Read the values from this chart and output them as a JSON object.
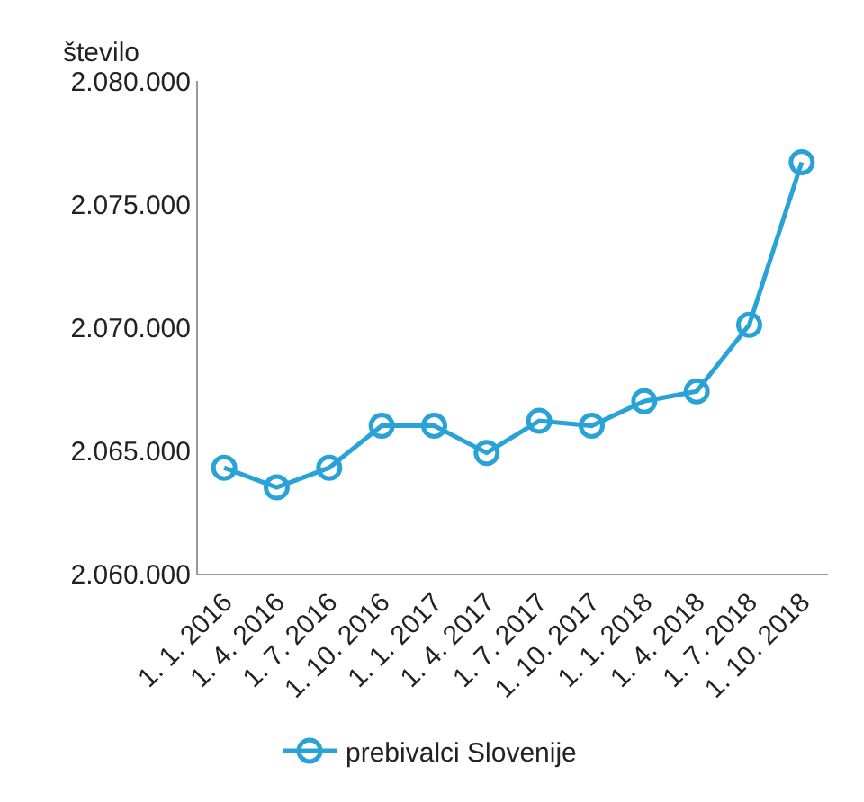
{
  "chart_data": {
    "type": "line",
    "ylabel": "število",
    "categories": [
      "1. 1. 2016",
      "1. 4. 2016",
      "1. 7. 2016",
      "1. 10. 2016",
      "1. 1. 2017",
      "1. 4. 2017",
      "1. 7. 2017",
      "1. 10. 2017",
      "1. 1. 2018",
      "1. 4. 2018",
      "1. 7. 2018",
      "1. 10. 2018"
    ],
    "series": [
      {
        "name": "prebivalci Slovenije",
        "color": "#29a3d7",
        "values": [
          2064300,
          2063500,
          2064300,
          2066000,
          2066000,
          2064900,
          2066200,
          2066000,
          2067000,
          2067400,
          2070100,
          2076700
        ]
      }
    ],
    "ylim": [
      2060000,
      2080000
    ],
    "yticks": [
      {
        "value": 2060000,
        "label": "2.060.000"
      },
      {
        "value": 2065000,
        "label": "2.065.000"
      },
      {
        "value": 2070000,
        "label": "2.070.000"
      },
      {
        "value": 2075000,
        "label": "2.075.000"
      },
      {
        "value": 2080000,
        "label": "2.080.000"
      }
    ],
    "grid": false,
    "legend": "bottom left",
    "marker": "circle",
    "line_style": "solid"
  }
}
